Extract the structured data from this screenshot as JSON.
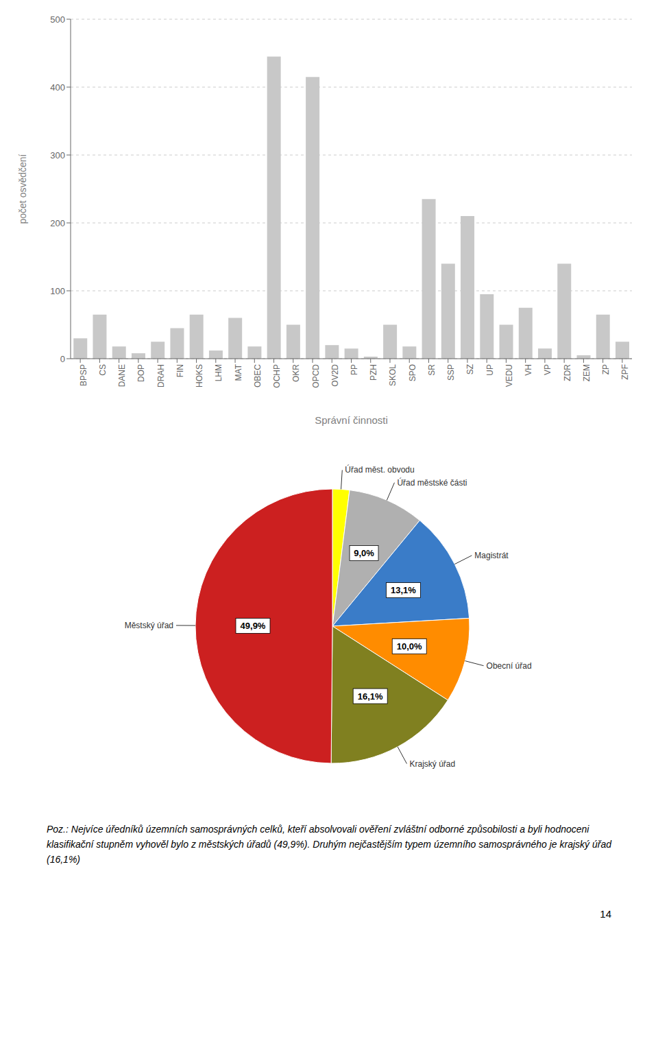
{
  "chart_data": [
    {
      "type": "bar",
      "categories": [
        "BPSP",
        "CS",
        "DANE",
        "DOP",
        "DRAH",
        "FIN",
        "HOKS",
        "LHM",
        "MAT",
        "OBEC",
        "OCHP",
        "OKR",
        "OPCD",
        "OV2D",
        "PP",
        "PZH",
        "SKOL",
        "SPO",
        "SR",
        "SSP",
        "SZ",
        "UP",
        "VEDU",
        "VH",
        "VP",
        "ZDR",
        "ZEM",
        "ZP",
        "ZPF"
      ],
      "values": [
        30,
        65,
        18,
        8,
        25,
        45,
        65,
        12,
        60,
        18,
        445,
        50,
        415,
        20,
        15,
        3,
        50,
        18,
        235,
        140,
        210,
        95,
        50,
        75,
        15,
        140,
        5,
        65,
        25
      ],
      "color": "#c8c8c8",
      "xlabel": "Správní činnosti",
      "ylabel": "počet osvědčení",
      "ylim": [
        0,
        500
      ],
      "yticks": [
        0,
        100,
        200,
        300,
        400,
        500
      ],
      "grid": true
    },
    {
      "type": "pie",
      "categories": [
        "Úřad měst. obvodu",
        "Úřad městské části",
        "Magistrát",
        "Obecní úřad",
        "Krajský úřad",
        "Městský úřad"
      ],
      "values": [
        2.0,
        9.0,
        13.1,
        10.0,
        16.1,
        49.9
      ],
      "colors": [
        "#ffff00",
        "#b0b0b0",
        "#3a7cc8",
        "#ff8c00",
        "#808020",
        "#cc2020"
      ],
      "value_labels": [
        null,
        "9,0%",
        "13,1%",
        "10,0%",
        "16,1%",
        "49,9%"
      ],
      "data_labels": true,
      "annotations": [
        "Poz.: Nejvíce úředníků územních samosprávných celků, kteří absolvovali ověření zvláštní odborné způsobilosti a byli hodnoceni klasifikační stupněm vyhověl bylo z městských úřadů (49,9%). Druhým nejčastějším typem územního samosprávného je krajský úřad (16,1%)",
        "14"
      ]
    }
  ]
}
